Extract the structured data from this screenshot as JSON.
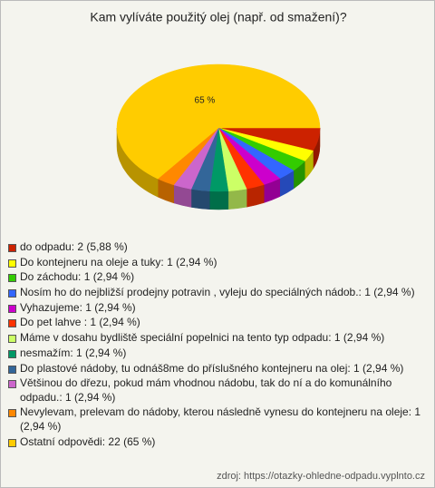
{
  "chart_data": {
    "type": "pie3d",
    "title": "Kam vylíváte použitý olej (např. od smažení)?",
    "categories": [
      "do odpadu: 2 (5,88 %)",
      "Do kontejneru na oleje a tuky: 1 (2,94 %)",
      "Do záchodu: 1 (2,94 %)",
      "Nosím ho do nejbližší prodejny potravin , vyleju do speciálných nádob.: 1 (2,94 %)",
      "Vyhazujeme: 1 (2,94 %)",
      "Do pet lahve : 1 (2,94 %)",
      "Máme v dosahu bydliště speciální popelnici na tento typ odpadu: 1 (2,94 %)",
      "nesmažím: 1 (2,94 %)",
      "Do plastové nádoby, tu odnáš8me do příslušného kontejneru na olej: 1 (2,94 %)",
      "Většinou do dřezu, pokud mám vhodnou nádobu, tak do ní a do komunálního odpadu.: 1 (2,94 %)",
      "Nevylevam, prelevam do nádoby, kterou následně vynesu do kontejneru na oleje: 1 (2,94 %)",
      "Ostatní odpovědi: 22 (65 %)"
    ],
    "values": [
      5.88,
      2.94,
      2.94,
      2.94,
      2.94,
      2.94,
      2.94,
      2.94,
      2.94,
      2.94,
      2.94,
      65
    ],
    "value_labels": [
      null,
      null,
      null,
      null,
      null,
      null,
      null,
      null,
      null,
      null,
      null,
      "65 %"
    ],
    "colors": [
      "#cc2200",
      "#ffff00",
      "#33cc00",
      "#3366ff",
      "#cc00cc",
      "#ff3300",
      "#ccff66",
      "#009966",
      "#336699",
      "#cc66cc",
      "#ff8800",
      "#ffcc00"
    ],
    "source": "zdroj: https://otazky-ohledne-odpadu.vyplnto.cz"
  }
}
